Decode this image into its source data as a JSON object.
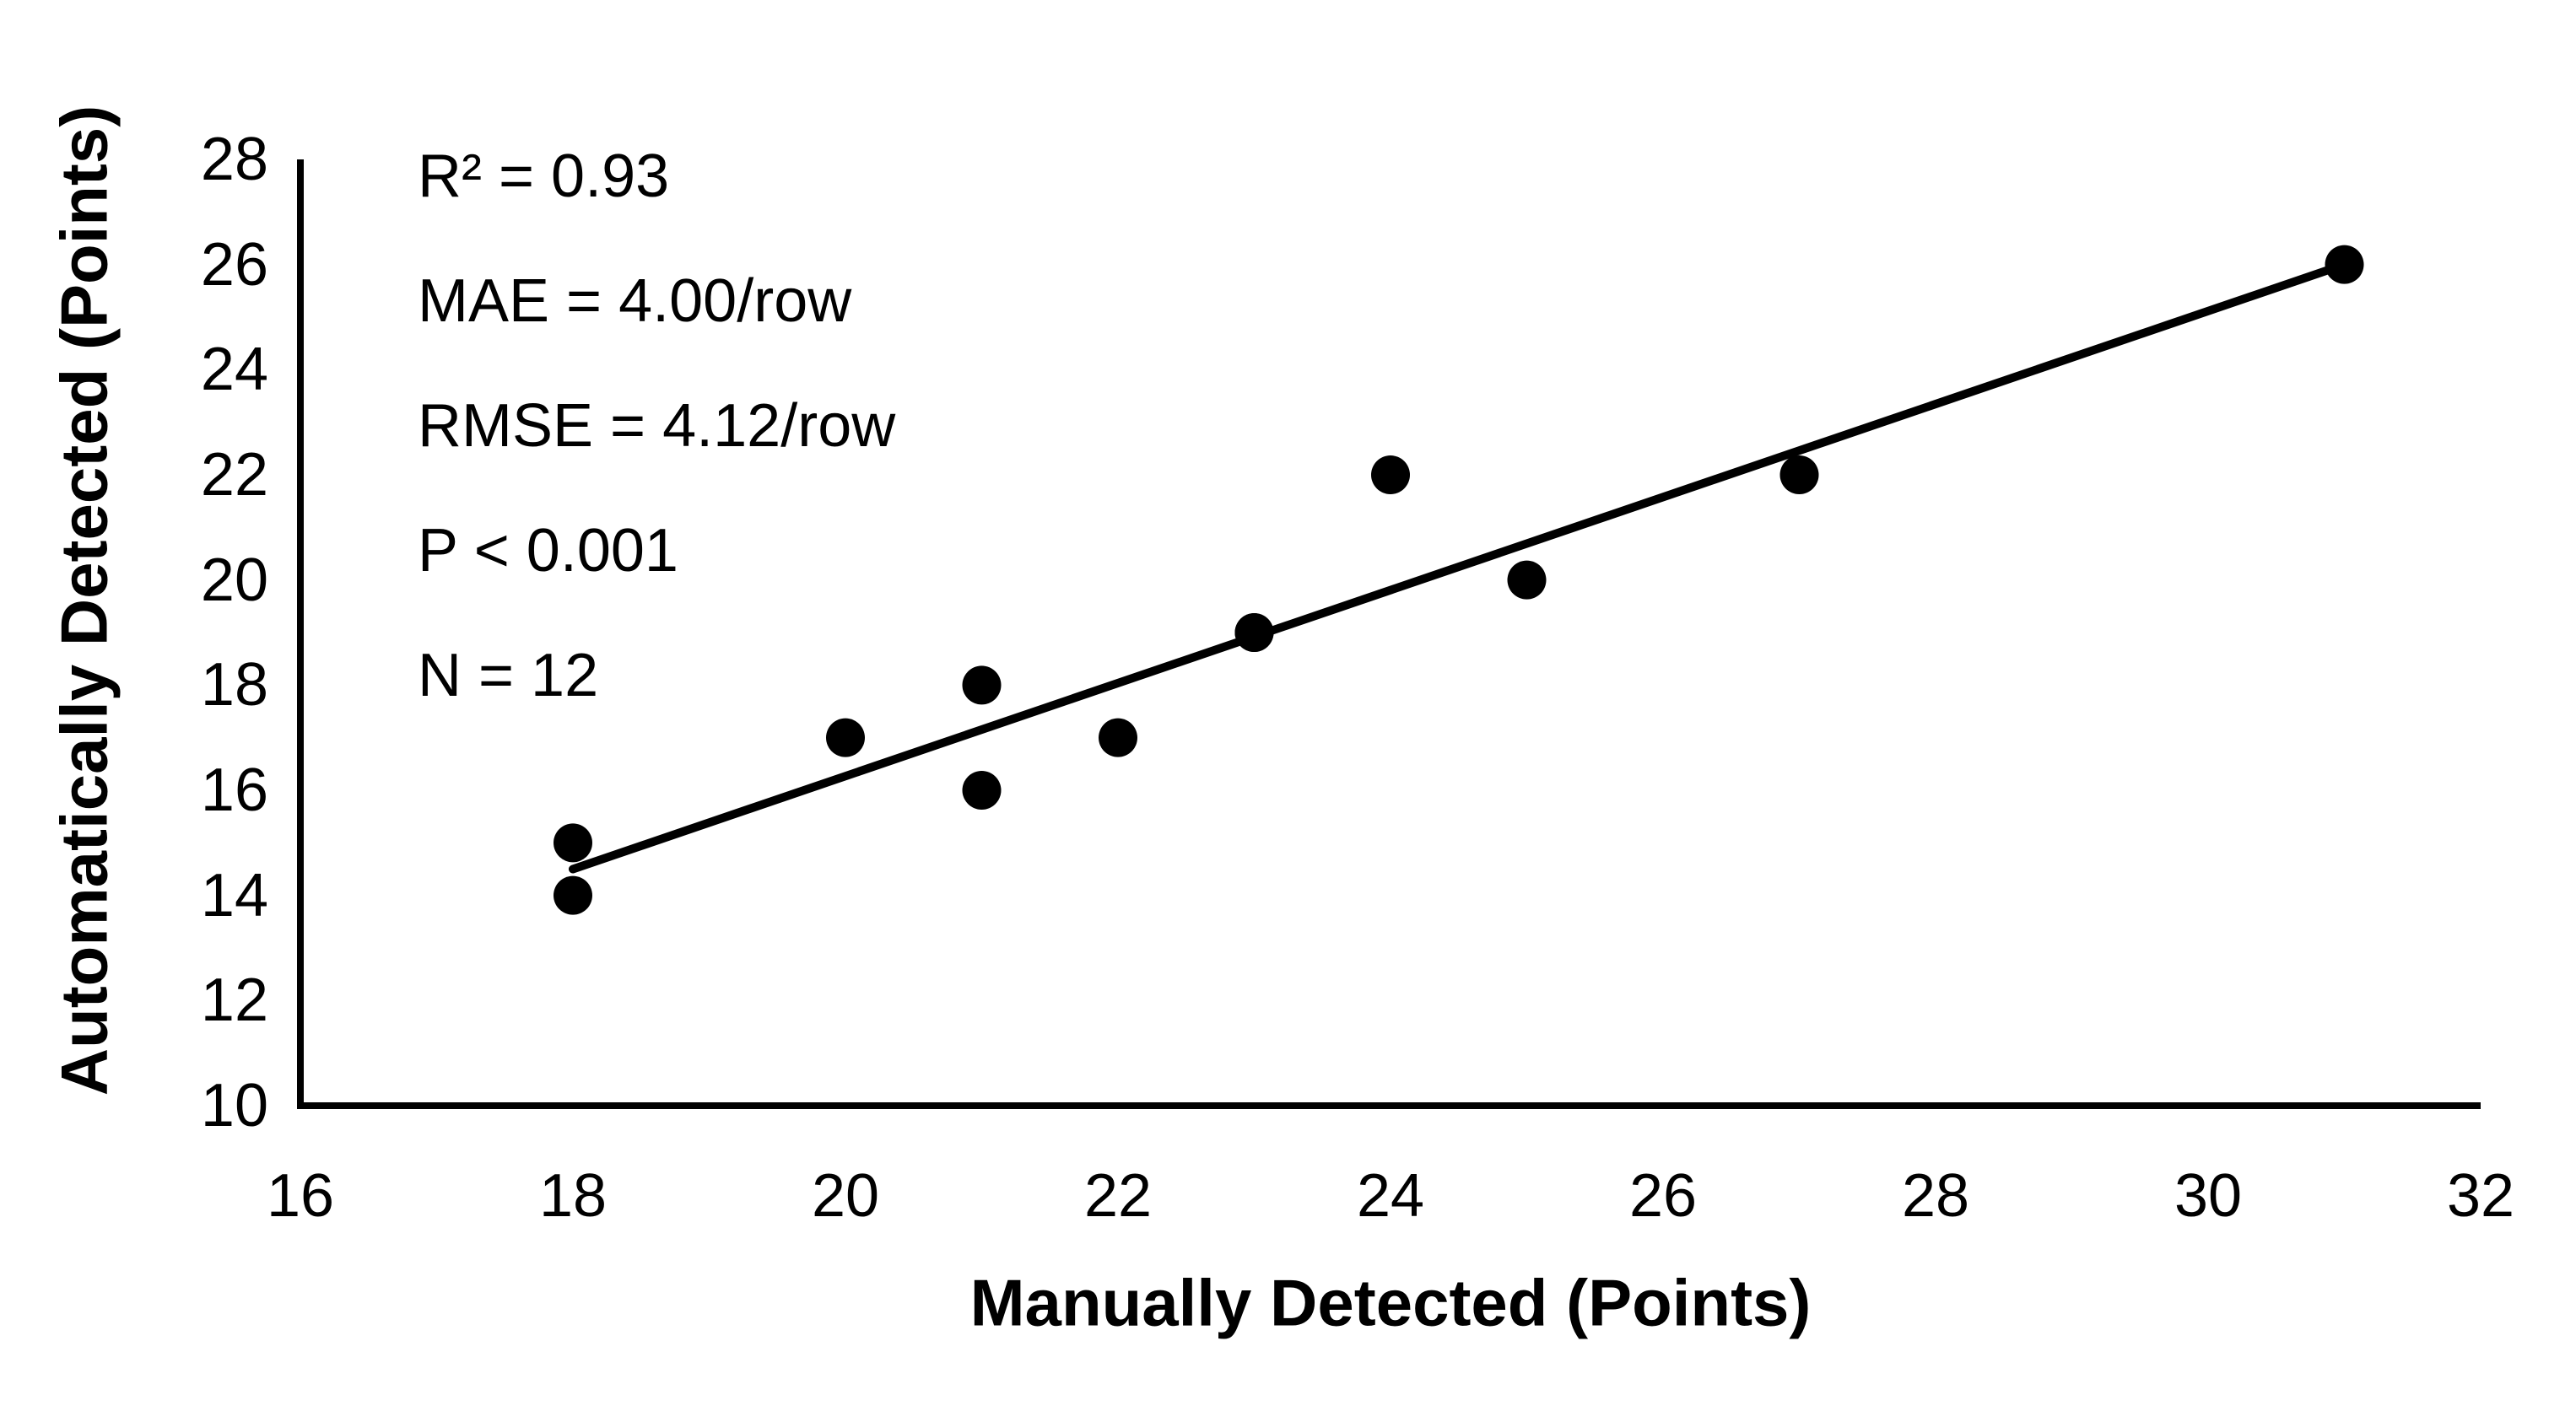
{
  "chart_data": {
    "type": "scatter",
    "title": "",
    "xlabel": "Manually Detected (Points)",
    "ylabel": "Automatically Detected (Points)",
    "xlim": [
      16,
      32
    ],
    "ylim": [
      10,
      28
    ],
    "x_ticks": [
      16,
      18,
      20,
      22,
      24,
      26,
      28,
      30,
      32
    ],
    "y_ticks": [
      28,
      26,
      24,
      22,
      20,
      18,
      16,
      14,
      12,
      10
    ],
    "grid": false,
    "legend": false,
    "background_color": "#ffffff",
    "marker_color": "#000000",
    "line_color": "#000000",
    "axis_color": "#000000",
    "points": [
      {
        "x": 18,
        "y": 15
      },
      {
        "x": 18,
        "y": 14
      },
      {
        "x": 20,
        "y": 17
      },
      {
        "x": 21,
        "y": 18
      },
      {
        "x": 21,
        "y": 16
      },
      {
        "x": 22,
        "y": 17
      },
      {
        "x": 23,
        "y": 19
      },
      {
        "x": 23,
        "y": 19
      },
      {
        "x": 24,
        "y": 22
      },
      {
        "x": 25,
        "y": 20
      },
      {
        "x": 27,
        "y": 22
      },
      {
        "x": 31,
        "y": 26
      }
    ],
    "trendline": {
      "x1": 18,
      "y1": 14.5,
      "x2": 31,
      "y2": 26
    },
    "annotations": {
      "r_squared": "R² = 0.93",
      "mae": "MAE = 4.00/row",
      "rmse": "RMSE = 4.12/row",
      "p_value": "P < 0.001",
      "n": "N = 12"
    }
  }
}
